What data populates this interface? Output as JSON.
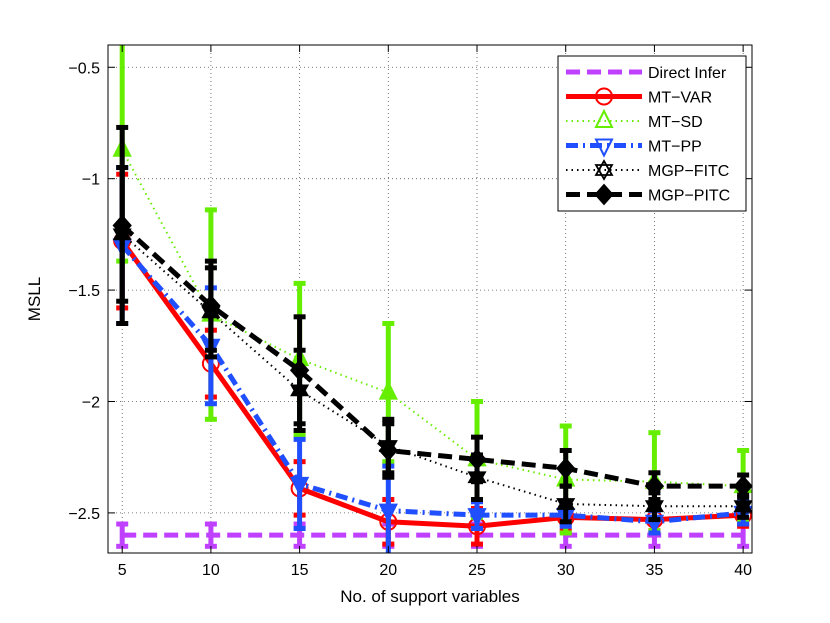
{
  "chart_data": {
    "type": "line",
    "xlabel": "No. of support variables",
    "ylabel": "MSLL",
    "x": [
      5,
      10,
      15,
      20,
      25,
      30,
      35,
      40
    ],
    "xlim": [
      4.2,
      40.5
    ],
    "ylim": [
      -2.68,
      -0.4
    ],
    "xticks": [
      "5",
      "10",
      "15",
      "20",
      "25",
      "30",
      "35",
      "40"
    ],
    "yticks": [
      "−0.5",
      "−1",
      "−1.5",
      "−2",
      "−2.5"
    ],
    "grid": true,
    "legend_position": "top-right",
    "series": [
      {
        "name": "Direct Infer",
        "color": "#bf40ff",
        "dash": "dashed",
        "marker": "none",
        "values": [
          -2.6,
          -2.6,
          -2.6,
          -2.6,
          -2.6,
          -2.6,
          -2.6,
          -2.6
        ],
        "err": [
          0.05,
          0.05,
          0.05,
          0.05,
          0.05,
          0.05,
          0.05,
          0.05
        ]
      },
      {
        "name": "MT−VAR",
        "color": "#ff0000",
        "dash": "solid",
        "marker": "circle",
        "values": [
          -1.28,
          -1.83,
          -2.39,
          -2.54,
          -2.56,
          -2.52,
          -2.53,
          -2.51
        ],
        "err": [
          0.3,
          0.15,
          0.12,
          0.1,
          0.08,
          0.06,
          0.05,
          0.05
        ]
      },
      {
        "name": "MT−SD",
        "color": "#66ee00",
        "dash": "dotted",
        "marker": "triangle-up",
        "values": [
          -0.87,
          -1.61,
          -1.81,
          -1.96,
          -2.26,
          -2.35,
          -2.36,
          -2.38
        ],
        "err": [
          0.5,
          0.47,
          0.34,
          0.31,
          0.26,
          0.24,
          0.22,
          0.16
        ]
      },
      {
        "name": "MT−PP",
        "color": "#1f4fff",
        "dash": "dashdot",
        "marker": "triangle-down",
        "values": [
          -1.3,
          -1.75,
          -2.37,
          -2.49,
          -2.51,
          -2.51,
          -2.54,
          -2.5
        ],
        "err": [
          0.35,
          0.26,
          0.2,
          0.2,
          0.06,
          0.05,
          0.05,
          0.05
        ]
      },
      {
        "name": "MGP−FITC",
        "color": "#000000",
        "dash": "dotted",
        "marker": "hexagram",
        "values": [
          -1.25,
          -1.6,
          -1.95,
          -2.2,
          -2.34,
          -2.46,
          -2.47,
          -2.47
        ],
        "err": [
          0.3,
          0.2,
          0.18,
          0.12,
          0.1,
          0.08,
          0.06,
          0.05
        ]
      },
      {
        "name": "MGP−PITC",
        "color": "#000000",
        "dash": "dashed",
        "marker": "diamond",
        "values": [
          -1.21,
          -1.57,
          -1.86,
          -2.22,
          -2.26,
          -2.3,
          -2.38,
          -2.38
        ],
        "err": [
          0.44,
          0.2,
          0.24,
          0.12,
          0.1,
          0.08,
          0.06,
          0.05
        ]
      }
    ]
  }
}
